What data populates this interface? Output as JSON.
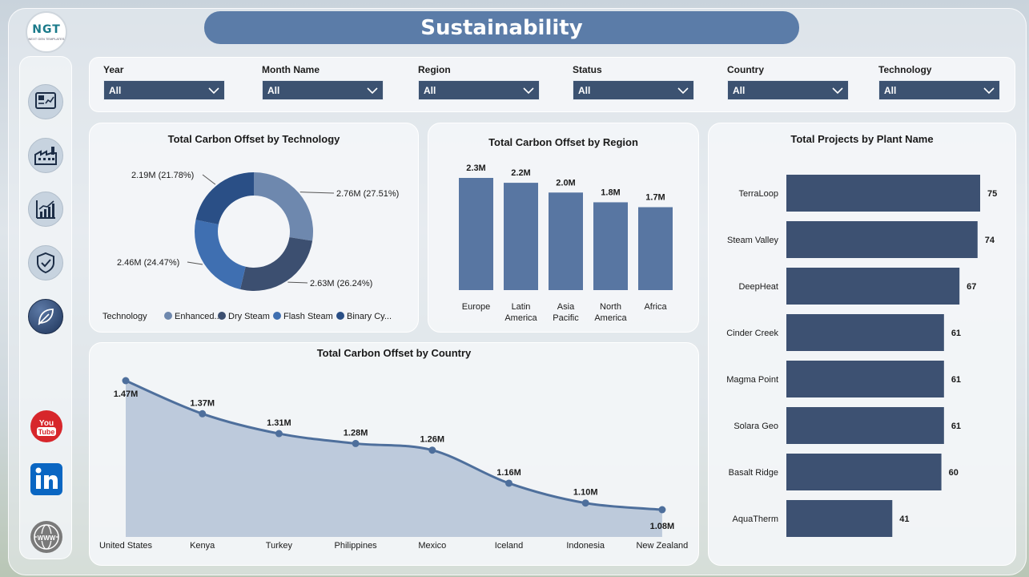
{
  "header": {
    "logo_text": "NGT",
    "logo_subtext": "NEXT GEN TEMPLATES",
    "title": "Sustainability"
  },
  "sidebar": {
    "items": [
      {
        "icon": "dashboard-icon"
      },
      {
        "icon": "factory-icon"
      },
      {
        "icon": "growth-chart-icon"
      },
      {
        "icon": "shield-check-icon"
      },
      {
        "icon": "leaf-icon",
        "active": true
      }
    ],
    "social": [
      {
        "icon": "youtube-icon",
        "label": "You Tube"
      },
      {
        "icon": "linkedin-icon",
        "label": "in"
      },
      {
        "icon": "website-icon",
        "label": "WWW"
      }
    ]
  },
  "filters": [
    {
      "label": "Year",
      "value": "All"
    },
    {
      "label": "Month Name",
      "value": "All"
    },
    {
      "label": "Region",
      "value": "All"
    },
    {
      "label": "Status",
      "value": "All"
    },
    {
      "label": "Country",
      "value": "All"
    },
    {
      "label": "Technology",
      "value": "All"
    }
  ],
  "colors": {
    "accent": "#5b7ca8",
    "dark_navy": "#3c5271",
    "bar": "#3d5172"
  },
  "chart_data": [
    {
      "type": "pie",
      "title": "Total Carbon Offset by Technology",
      "legend_title": "Technology",
      "legend_position": "bottom",
      "slices": [
        {
          "name": "Enhanced...",
          "value": 2.76,
          "label": "2.76M (27.51%)",
          "color": "#6e88ae"
        },
        {
          "name": "Dry Steam",
          "value": 2.63,
          "label": "2.63M (26.24%)",
          "color": "#3c4f70"
        },
        {
          "name": "Flash Steam",
          "value": 2.46,
          "label": "2.46M (24.47%)",
          "color": "#3f6fb1"
        },
        {
          "name": "Binary Cy...",
          "value": 2.19,
          "label": "2.19M (21.78%)",
          "color": "#2a4f86"
        }
      ]
    },
    {
      "type": "bar",
      "title": "Total Carbon Offset by Region",
      "categories": [
        "Europe",
        "Latin America",
        "Asia Pacific",
        "North America",
        "Africa"
      ],
      "values": [
        2.3,
        2.2,
        2.0,
        1.8,
        1.7
      ],
      "labels": [
        "2.3M",
        "2.2M",
        "2.0M",
        "1.8M",
        "1.7M"
      ],
      "ylim": [
        0,
        2.3
      ],
      "color": "#5876a2"
    },
    {
      "type": "bar",
      "orientation": "horizontal",
      "title": "Total Projects by Plant Name",
      "categories": [
        "TerraLoop",
        "Steam Valley",
        "DeepHeat",
        "Cinder Creek",
        "Magma Point",
        "Solara Geo",
        "Basalt Ridge",
        "AquaTherm"
      ],
      "values": [
        75,
        74,
        67,
        61,
        61,
        61,
        60,
        41
      ],
      "xlim": [
        0,
        75
      ],
      "color": "#3d5172"
    },
    {
      "type": "area",
      "title": "Total Carbon Offset by Country",
      "categories": [
        "United States",
        "Kenya",
        "Turkey",
        "Philippines",
        "Mexico",
        "Iceland",
        "Indonesia",
        "New Zealand"
      ],
      "values": [
        1.47,
        1.37,
        1.31,
        1.28,
        1.26,
        1.16,
        1.1,
        1.08
      ],
      "labels": [
        "1.47M",
        "1.37M",
        "1.31M",
        "1.28M",
        "1.26M",
        "1.16M",
        "1.10M",
        "1.08M"
      ],
      "ylim": [
        0,
        1.47
      ],
      "color": "#5b7ca8"
    }
  ]
}
